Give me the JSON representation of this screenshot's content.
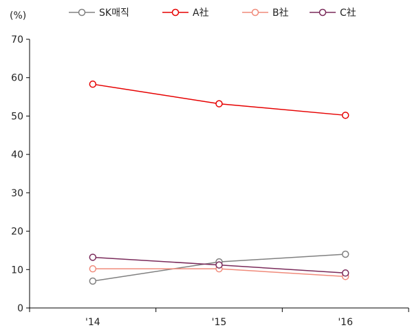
{
  "chart_data": {
    "type": "line",
    "title": "",
    "xlabel": "",
    "ylabel": "",
    "unit": "(%)",
    "categories": [
      "'14",
      "'15",
      "'16"
    ],
    "ylim": [
      0,
      70
    ],
    "yticks": [
      "0",
      "10",
      "20",
      "30",
      "40",
      "50",
      "60",
      "70"
    ],
    "grid": false,
    "legend_position": "top",
    "series": [
      {
        "name": "SK매직",
        "values": [
          7,
          12,
          14
        ],
        "color": "#808080"
      },
      {
        "name": "A社",
        "values": [
          58.3,
          53.2,
          50.2
        ],
        "color": "#e60000"
      },
      {
        "name": "B社",
        "values": [
          10.2,
          10.2,
          8.2
        ],
        "color": "#f08a7a"
      },
      {
        "name": "C社",
        "values": [
          13.2,
          11.2,
          9.1
        ],
        "color": "#7a2a5a"
      }
    ]
  }
}
